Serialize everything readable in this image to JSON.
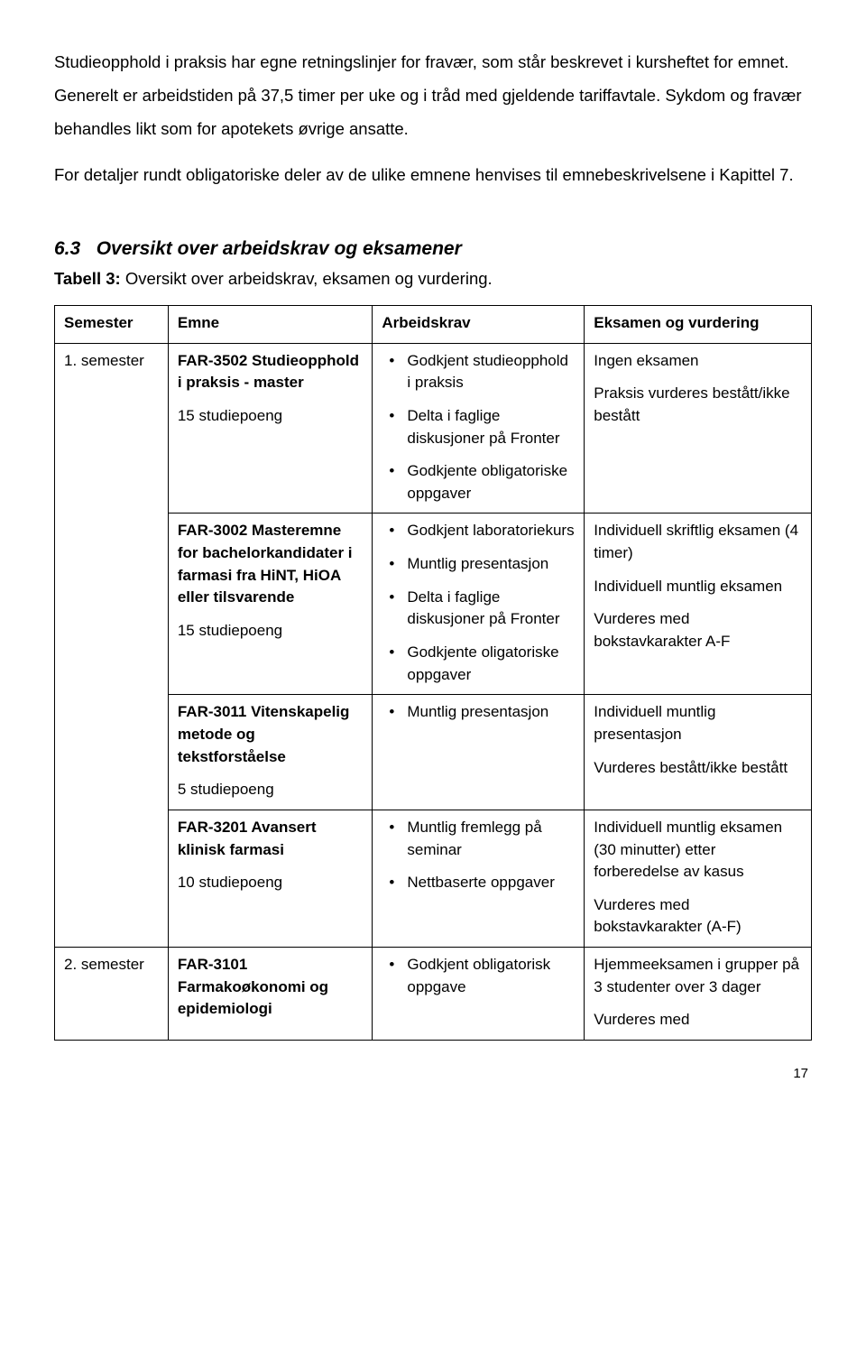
{
  "paragraphs": {
    "p1": "Studieopphold i praksis har egne retningslinjer for fravær, som står beskrevet i kursheftet for emnet. Generelt er arbeidstiden på 37,5 timer per uke og i tråd med gjeldende tariffavtale. Sykdom og fravær behandles likt som for apotekets øvrige ansatte.",
    "p2": "For detaljer rundt obligatoriske deler av de ulike emnene henvises til emnebeskrivelsene i Kapittel 7."
  },
  "heading_num": "6.3",
  "heading_text": "Oversikt over arbeidskrav og eksamener",
  "caption_label": "Tabell 3:",
  "caption_text": " Oversikt over arbeidskrav, eksamen og vurdering.",
  "table": {
    "headers": {
      "h1": "Semester",
      "h2": "Emne",
      "h3": "Arbeidskrav",
      "h4": "Eksamen og vurdering"
    },
    "rows": [
      {
        "semester": "1. semester",
        "emne_title": "FAR-3502 Studieopphold i praksis - master",
        "emne_sp": "15 studiepoeng",
        "arbeidskrav": [
          "Godkjent studieopphold i praksis",
          "Delta i faglige diskusjoner på Fronter",
          "Godkjente obligatoriske oppgaver"
        ],
        "eksamen": [
          "Ingen eksamen",
          "Praksis vurderes bestått/ikke bestått"
        ]
      },
      {
        "emne_title": "FAR-3002 Masteremne for bachelorkandidater i farmasi fra HiNT, HiOA eller tilsvarende",
        "emne_sp": "15 studiepoeng",
        "arbeidskrav": [
          "Godkjent laboratoriekurs",
          "Muntlig presentasjon",
          "Delta i faglige diskusjoner på Fronter",
          "Godkjente oligatoriske oppgaver"
        ],
        "eksamen": [
          "Individuell skriftlig eksamen (4 timer)",
          "Individuell muntlig eksamen",
          "Vurderes med bokstavkarakter A-F"
        ]
      },
      {
        "emne_title": "FAR-3011 Vitenskapelig metode og tekstforståelse",
        "emne_sp": "5 studiepoeng",
        "arbeidskrav": [
          "Muntlig presentasjon"
        ],
        "eksamen": [
          "Individuell muntlig presentasjon",
          "Vurderes bestått/ikke bestått"
        ]
      },
      {
        "emne_title": "FAR-3201 Avansert klinisk farmasi",
        "emne_sp": "10 studiepoeng",
        "arbeidskrav": [
          "Muntlig fremlegg på seminar",
          "Nettbaserte oppgaver"
        ],
        "eksamen": [
          "Individuell muntlig eksamen (30 minutter) etter forberedelse av kasus",
          "Vurderes med bokstavkarakter (A-F)"
        ]
      },
      {
        "semester": "2. semester",
        "emne_title": "FAR-3101 Farmakoøkonomi og epidemiologi",
        "emne_sp": "",
        "arbeidskrav": [
          "Godkjent obligatorisk oppgave"
        ],
        "eksamen": [
          "Hjemmeeksamen i grupper på 3 studenter over 3 dager",
          "Vurderes med"
        ]
      }
    ]
  },
  "page_number": "17"
}
